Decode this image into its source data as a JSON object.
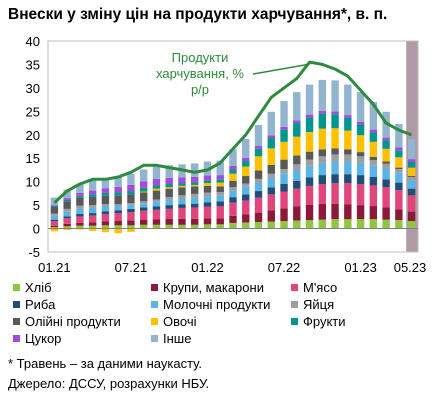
{
  "title": "Внески у зміну цін на продукти харчування*, в. п.",
  "footnote": "* Травень – за даними наукасту.",
  "source": "Джерело: ДССУ, розрахунки НБУ.",
  "annotation": [
    "Продукти",
    "харчування, %",
    "р/р"
  ],
  "chart_data": {
    "type": "bar",
    "stacked": true,
    "title": "Внески у зміну цін на продукти харчування*, в. п.",
    "ylim": [
      -5,
      40
    ],
    "yticks": [
      -5,
      0,
      5,
      10,
      15,
      20,
      25,
      30,
      35,
      40
    ],
    "x": [
      "01.21",
      "02.21",
      "03.21",
      "04.21",
      "05.21",
      "06.21",
      "07.21",
      "08.21",
      "09.21",
      "10.21",
      "11.21",
      "12.21",
      "01.22",
      "02.22",
      "03.22",
      "04.22",
      "05.22",
      "06.22",
      "07.22",
      "08.22",
      "09.22",
      "10.22",
      "11.22",
      "12.22",
      "01.23",
      "02.23",
      "03.23",
      "04.23",
      "05.23"
    ],
    "xtick_labels": [
      "01.21",
      "07.21",
      "01.22",
      "07.22",
      "01.23",
      "05.23"
    ],
    "shaded_last_period": "05.23",
    "series": [
      {
        "name": "Хліб",
        "color": "#8dc63f",
        "values": [
          0.3,
          0.5,
          0.6,
          0.6,
          0.7,
          0.7,
          0.7,
          0.8,
          0.8,
          0.8,
          0.8,
          0.8,
          0.9,
          0.9,
          1.2,
          1.3,
          1.4,
          1.5,
          1.6,
          1.7,
          1.8,
          1.9,
          2.0,
          2.0,
          2.0,
          2.0,
          1.9,
          1.8,
          1.6
        ]
      },
      {
        "name": "Крупи, макарони",
        "color": "#8b1a3a",
        "values": [
          0.3,
          0.5,
          0.6,
          0.7,
          0.8,
          0.9,
          1.0,
          1.1,
          1.2,
          1.3,
          1.3,
          1.3,
          1.3,
          1.3,
          1.5,
          1.7,
          2.0,
          2.4,
          2.7,
          3.0,
          3.3,
          3.4,
          3.3,
          3.2,
          3.0,
          2.8,
          2.6,
          2.3,
          2.0
        ]
      },
      {
        "name": "М'ясо",
        "color": "#e0457b",
        "values": [
          1.0,
          1.2,
          1.4,
          1.5,
          1.6,
          1.7,
          1.8,
          1.9,
          2.0,
          2.1,
          2.3,
          2.4,
          2.5,
          2.6,
          2.8,
          3.0,
          3.2,
          3.4,
          3.6,
          3.8,
          4.0,
          4.2,
          4.4,
          4.5,
          4.5,
          4.4,
          4.3,
          4.1,
          3.5
        ]
      },
      {
        "name": "Риба",
        "color": "#1f4e79",
        "values": [
          0.3,
          0.4,
          0.5,
          0.5,
          0.6,
          0.6,
          0.7,
          0.7,
          0.7,
          0.8,
          0.8,
          0.8,
          0.9,
          1.0,
          1.2,
          1.3,
          1.4,
          1.5,
          1.6,
          1.7,
          1.8,
          1.9,
          1.9,
          1.9,
          1.9,
          1.8,
          1.7,
          1.6,
          1.4
        ]
      },
      {
        "name": "Молочні продукти",
        "color": "#5ab4e5",
        "values": [
          0.8,
          1.0,
          1.1,
          1.1,
          1.0,
          0.9,
          0.9,
          0.9,
          1.0,
          1.1,
          1.2,
          1.3,
          1.3,
          1.3,
          1.4,
          1.6,
          1.8,
          2.0,
          2.2,
          2.3,
          2.5,
          2.6,
          2.7,
          2.7,
          2.6,
          2.4,
          2.3,
          2.1,
          1.9
        ]
      },
      {
        "name": "Яйця",
        "color": "#9e9e9e",
        "values": [
          0.5,
          0.6,
          0.7,
          0.6,
          0.5,
          0.4,
          0.3,
          0.4,
          0.5,
          0.6,
          0.7,
          0.8,
          0.8,
          0.7,
          0.7,
          0.7,
          0.8,
          0.9,
          1.0,
          1.2,
          1.3,
          1.4,
          1.5,
          1.5,
          1.4,
          1.2,
          1.0,
          0.8,
          0.6
        ]
      },
      {
        "name": "Олійні продукти",
        "color": "#595959",
        "values": [
          1.4,
          1.6,
          1.7,
          1.8,
          1.8,
          1.8,
          1.9,
          1.9,
          1.9,
          1.8,
          1.7,
          1.6,
          1.4,
          1.2,
          1.4,
          1.6,
          1.8,
          1.9,
          2.0,
          1.9,
          1.7,
          1.5,
          1.3,
          1.1,
          0.9,
          0.7,
          0.5,
          0.3,
          0.2
        ]
      },
      {
        "name": "Овочі",
        "color": "#ffc000",
        "values": [
          -0.6,
          -0.3,
          -0.2,
          -0.5,
          -0.8,
          -1.0,
          -0.7,
          0.2,
          0.4,
          0.3,
          0.3,
          0.3,
          0.6,
          0.8,
          1.5,
          2.0,
          3.0,
          3.5,
          3.8,
          4.0,
          4.2,
          4.4,
          4.3,
          4.0,
          3.6,
          3.2,
          2.7,
          2.2,
          1.8
        ]
      },
      {
        "name": "Фрукти",
        "color": "#00968f",
        "values": [
          0.2,
          0.3,
          0.4,
          0.5,
          0.6,
          0.7,
          0.7,
          0.8,
          0.7,
          0.7,
          0.6,
          0.6,
          0.6,
          0.7,
          0.9,
          1.2,
          1.6,
          2.2,
          2.6,
          2.9,
          3.1,
          3.2,
          3.0,
          2.7,
          2.3,
          2.0,
          1.8,
          1.5,
          1.2
        ]
      },
      {
        "name": "Цукор",
        "color": "#a64ad8",
        "values": [
          0.2,
          0.4,
          0.6,
          0.8,
          1.0,
          1.2,
          1.3,
          1.4,
          1.4,
          1.3,
          1.2,
          1.1,
          1.0,
          0.9,
          0.8,
          0.7,
          0.6,
          0.6,
          0.6,
          0.6,
          0.6,
          0.6,
          0.6,
          0.6,
          0.6,
          0.6,
          0.6,
          0.6,
          0.6
        ]
      },
      {
        "name": "Інше",
        "color": "#92b4cf",
        "values": [
          1.6,
          1.8,
          2.0,
          2.1,
          2.2,
          2.3,
          2.4,
          2.5,
          2.6,
          2.7,
          2.8,
          2.9,
          3.0,
          3.1,
          3.5,
          4.0,
          4.5,
          5.0,
          5.5,
          6.0,
          6.4,
          6.6,
          6.6,
          6.5,
          6.3,
          5.9,
          5.5,
          5.0,
          4.3
        ]
      }
    ],
    "line": {
      "name": "Продукти харчування, % р/р",
      "color": "#2e8b3e",
      "values": [
        5.5,
        8.0,
        9.5,
        10.5,
        10.5,
        11.0,
        12.0,
        13.5,
        13.5,
        13.0,
        12.5,
        12.0,
        12.5,
        14.0,
        17.0,
        20.0,
        24.0,
        28.0,
        30.0,
        32.0,
        35.5,
        35.0,
        34.0,
        32.5,
        29.5,
        26.5,
        22.5,
        21.0,
        20.0
      ]
    },
    "legend": [
      [
        "Хліб",
        "Крупи, макарони",
        "М'ясо"
      ],
      [
        "Риба",
        "Молочні продукти",
        "Яйця"
      ],
      [
        "Олійні продукти",
        "Овочі",
        "Фрукти"
      ],
      [
        "Цукор",
        "Інше"
      ]
    ]
  }
}
